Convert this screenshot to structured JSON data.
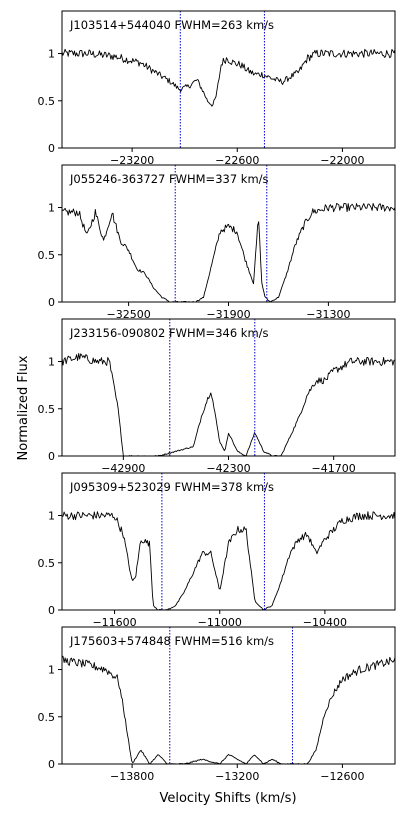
{
  "figure": {
    "ylabel": "Normalized Flux",
    "xlabel": "Velocity Shifts (km/s)"
  },
  "chart_data": [
    {
      "type": "line",
      "title": "J103514+544040  FWHM=263 km/s",
      "xlim": [
        -23600,
        -21700
      ],
      "ylim": [
        0,
        1.45
      ],
      "xticks": [
        -23200,
        -22600,
        -22000
      ],
      "yticks": [
        0,
        0.5,
        1
      ],
      "vlines": [
        -22925,
        -22445
      ],
      "series": [
        {
          "x": [
            -23600,
            -23450,
            -23300,
            -23150,
            -23050,
            -22980,
            -22930,
            -22880,
            -22830,
            -22800,
            -22770,
            -22740,
            -22720,
            -22690,
            -22660,
            -22620,
            -22580,
            -22540,
            -22500,
            -22460,
            -22420,
            -22380,
            -22340,
            -22300,
            -22250,
            -22200,
            -22150,
            -22100,
            -22000,
            -21850,
            -21700
          ],
          "values": [
            1.0,
            1.0,
            0.97,
            0.9,
            0.78,
            0.7,
            0.62,
            0.65,
            0.72,
            0.62,
            0.5,
            0.45,
            0.55,
            0.9,
            0.95,
            0.9,
            0.88,
            0.82,
            0.78,
            0.78,
            0.75,
            0.72,
            0.7,
            0.75,
            0.8,
            0.95,
            1.0,
            1.0,
            1.0,
            1.0,
            1.0
          ]
        }
      ]
    },
    {
      "type": "line",
      "title": "J055246-363727  FWHM=337 km/s",
      "xlim": [
        -32900,
        -30900
      ],
      "ylim": [
        0,
        1.45
      ],
      "xticks": [
        -32500,
        -31900,
        -31300
      ],
      "yticks": [
        0,
        0.5,
        1
      ],
      "vlines": [
        -32220,
        -31670
      ],
      "series": [
        {
          "x": [
            -32900,
            -32800,
            -32750,
            -32700,
            -32650,
            -32600,
            -32550,
            -32500,
            -32450,
            -32400,
            -32350,
            -32300,
            -32250,
            -32200,
            -32100,
            -32050,
            -32000,
            -31950,
            -31900,
            -31850,
            -31800,
            -31750,
            -31720,
            -31700,
            -31680,
            -31650,
            -31600,
            -31550,
            -31500,
            -31450,
            -31400,
            -31300,
            -31200,
            -31100,
            -30900
          ],
          "values": [
            0.95,
            0.95,
            0.7,
            0.95,
            0.65,
            0.95,
            0.65,
            0.55,
            0.35,
            0.3,
            0.15,
            0.05,
            0.0,
            0.0,
            0.0,
            0.05,
            0.4,
            0.75,
            0.8,
            0.75,
            0.45,
            0.2,
            0.9,
            0.2,
            0.05,
            0.0,
            0.05,
            0.3,
            0.6,
            0.8,
            0.95,
            1.0,
            1.0,
            1.0,
            1.0
          ]
        }
      ]
    },
    {
      "type": "line",
      "title": "J233156-090802  FWHM=346 km/s",
      "xlim": [
        -43250,
        -41350
      ],
      "ylim": [
        0,
        1.45
      ],
      "xticks": [
        -42900,
        -42300,
        -41700
      ],
      "yticks": [
        0,
        0.5,
        1
      ],
      "vlines": [
        -42635,
        -42150
      ],
      "series": [
        {
          "x": [
            -43250,
            -43150,
            -43050,
            -42980,
            -42930,
            -42900,
            -42850,
            -42800,
            -42700,
            -42600,
            -42500,
            -42450,
            -42400,
            -42350,
            -42320,
            -42300,
            -42250,
            -42200,
            -42150,
            -42100,
            -42050,
            -42000,
            -41950,
            -41900,
            -41850,
            -41800,
            -41750,
            -41700,
            -41600,
            -41500,
            -41350
          ],
          "values": [
            1.0,
            1.05,
            1.0,
            1.0,
            0.5,
            0.0,
            0.0,
            0.0,
            0.0,
            0.05,
            0.1,
            0.45,
            0.7,
            0.15,
            0.05,
            0.25,
            0.05,
            0.0,
            0.25,
            0.05,
            0.0,
            0.0,
            0.2,
            0.4,
            0.65,
            0.8,
            0.8,
            0.9,
            1.0,
            1.0,
            1.0
          ]
        }
      ]
    },
    {
      "type": "line",
      "title": "J095309+523029  FWHM=378 km/s",
      "xlim": [
        -11900,
        -10000
      ],
      "ylim": [
        0,
        1.45
      ],
      "xticks": [
        -11600,
        -11000,
        -10400
      ],
      "yticks": [
        0,
        0.5,
        1
      ],
      "vlines": [
        -11330,
        -10745
      ],
      "series": [
        {
          "x": [
            -11900,
            -11750,
            -11600,
            -11550,
            -11500,
            -11480,
            -11450,
            -11400,
            -11380,
            -11350,
            -11300,
            -11250,
            -11200,
            -11150,
            -11100,
            -11050,
            -11000,
            -10950,
            -10900,
            -10850,
            -10800,
            -10750,
            -10700,
            -10650,
            -10600,
            -10550,
            -10500,
            -10450,
            -10400,
            -10300,
            -10200,
            -10000
          ],
          "values": [
            1.0,
            1.0,
            1.0,
            0.8,
            0.3,
            0.35,
            0.75,
            0.7,
            0.05,
            0.0,
            0.0,
            0.05,
            0.2,
            0.4,
            0.6,
            0.6,
            0.2,
            0.7,
            0.85,
            0.85,
            0.1,
            0.0,
            0.05,
            0.3,
            0.6,
            0.75,
            0.8,
            0.6,
            0.75,
            0.95,
            1.0,
            1.0
          ]
        }
      ]
    },
    {
      "type": "line",
      "title": "J175603+574848  FWHM=516 km/s",
      "xlim": [
        -14200,
        -12300
      ],
      "ylim": [
        0,
        1.45
      ],
      "xticks": [
        -13800,
        -13200,
        -12600
      ],
      "yticks": [
        0,
        0.5,
        1
      ],
      "vlines": [
        -13585,
        -12885
      ],
      "series": [
        {
          "x": [
            -14200,
            -14050,
            -13950,
            -13880,
            -13850,
            -13800,
            -13750,
            -13700,
            -13650,
            -13600,
            -13550,
            -13500,
            -13400,
            -13300,
            -13250,
            -13200,
            -13150,
            -13100,
            -13050,
            -13000,
            -12950,
            -12900,
            -12850,
            -12800,
            -12750,
            -12700,
            -12650,
            -12600,
            -12550,
            -12500,
            -12400,
            -12300
          ],
          "values": [
            1.1,
            1.05,
            1.0,
            0.9,
            0.6,
            0.0,
            0.15,
            0.0,
            0.1,
            0.0,
            0.0,
            0.0,
            0.05,
            0.0,
            0.1,
            0.05,
            0.0,
            0.1,
            0.0,
            0.05,
            0.0,
            0.0,
            0.0,
            0.0,
            0.15,
            0.55,
            0.75,
            0.9,
            0.95,
            1.0,
            1.05,
            1.1
          ]
        }
      ]
    }
  ]
}
